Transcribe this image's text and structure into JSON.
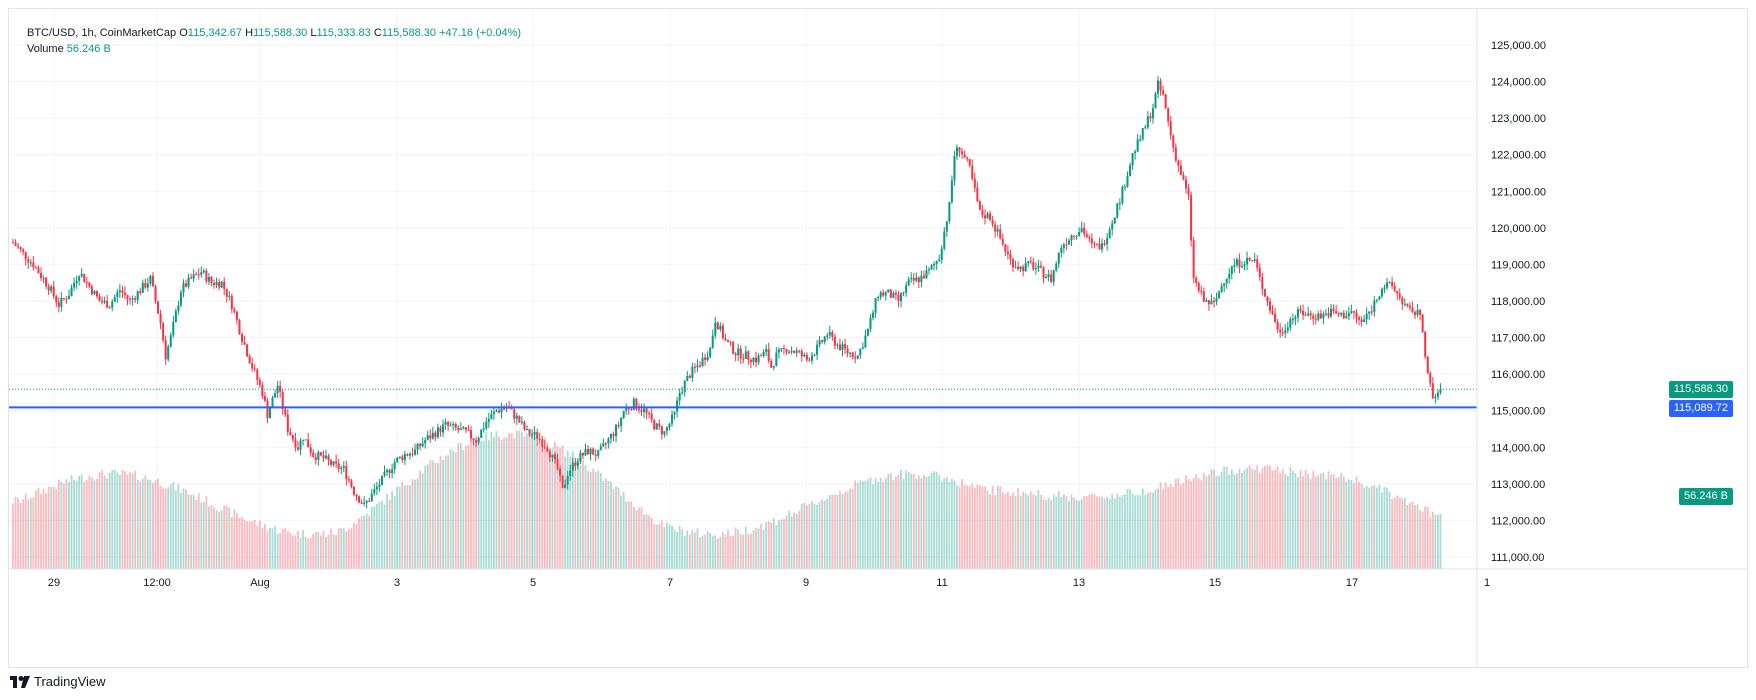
{
  "legend": {
    "symbol": "BTC/USD, 1h, CoinMarketCap",
    "open_label": "O",
    "open": "115,342.67",
    "high_label": "H",
    "high": "115,588.30",
    "low_label": "L",
    "low": "115,333.83",
    "close_label": "C",
    "close": "115,588.30",
    "change": "+47.16 (+0.04%)",
    "volume_label": "Volume",
    "volume": "56.246 B"
  },
  "tags": {
    "last_price": "115,588.30",
    "horizontal_line": "115,089.72",
    "volume": "56.246 B"
  },
  "brand": "TradingView",
  "colors": {
    "up": "#089981",
    "down": "#f23645",
    "line": "#2962ff",
    "grid": "#f0f3fa"
  },
  "chart_data": {
    "type": "candlestick",
    "title": "BTC/USD, 1h, CoinMarketCap",
    "y_axis_ticks": [
      "111,000.00",
      "112,000.00",
      "113,000.00",
      "114,000.00",
      "115,000.00",
      "116,000.00",
      "117,000.00",
      "118,000.00",
      "119,000.00",
      "120,000.00",
      "121,000.00",
      "122,000.00",
      "123,000.00",
      "124,000.00",
      "125,000.00"
    ],
    "x_axis_ticks": [
      "29",
      "12:00",
      "Aug",
      "3",
      "5",
      "7",
      "9",
      "11",
      "13",
      "15",
      "17",
      "1"
    ],
    "ylim": [
      110600,
      125400
    ],
    "last_price": 115588.3,
    "horizontal_line": 115089.72,
    "approx_price_path": [
      [
        0,
        119600
      ],
      [
        8,
        119000
      ],
      [
        14,
        118400
      ],
      [
        18,
        117900
      ],
      [
        22,
        118200
      ],
      [
        26,
        118800
      ],
      [
        30,
        118400
      ],
      [
        34,
        118000
      ],
      [
        38,
        117900
      ],
      [
        42,
        118300
      ],
      [
        46,
        118000
      ],
      [
        50,
        118300
      ],
      [
        54,
        118600
      ],
      [
        56,
        118000
      ],
      [
        58,
        117400
      ],
      [
        60,
        116500
      ],
      [
        62,
        117000
      ],
      [
        66,
        118300
      ],
      [
        70,
        118600
      ],
      [
        74,
        118800
      ],
      [
        78,
        118500
      ],
      [
        82,
        118500
      ],
      [
        86,
        117900
      ],
      [
        90,
        117000
      ],
      [
        94,
        116200
      ],
      [
        98,
        115500
      ],
      [
        100,
        114900
      ],
      [
        104,
        115700
      ],
      [
        108,
        114500
      ],
      [
        112,
        114000
      ],
      [
        114,
        114300
      ],
      [
        118,
        113800
      ],
      [
        122,
        113700
      ],
      [
        126,
        113500
      ],
      [
        130,
        113400
      ],
      [
        134,
        112800
      ],
      [
        138,
        112400
      ],
      [
        142,
        112800
      ],
      [
        146,
        113200
      ],
      [
        150,
        113600
      ],
      [
        154,
        113800
      ],
      [
        158,
        113900
      ],
      [
        162,
        114200
      ],
      [
        166,
        114400
      ],
      [
        170,
        114600
      ],
      [
        174,
        114500
      ],
      [
        178,
        114400
      ],
      [
        182,
        114200
      ],
      [
        186,
        114700
      ],
      [
        190,
        115000
      ],
      [
        194,
        115100
      ],
      [
        198,
        114800
      ],
      [
        202,
        114400
      ],
      [
        206,
        114300
      ],
      [
        210,
        114000
      ],
      [
        214,
        113400
      ],
      [
        216,
        112800
      ],
      [
        218,
        113300
      ],
      [
        222,
        113700
      ],
      [
        226,
        113900
      ],
      [
        230,
        113800
      ],
      [
        234,
        114200
      ],
      [
        238,
        114600
      ],
      [
        240,
        115000
      ],
      [
        244,
        115200
      ],
      [
        248,
        115000
      ],
      [
        252,
        114600
      ],
      [
        256,
        114400
      ],
      [
        260,
        114900
      ],
      [
        262,
        115500
      ],
      [
        266,
        116000
      ],
      [
        270,
        116300
      ],
      [
        274,
        116700
      ],
      [
        276,
        117500
      ],
      [
        280,
        116900
      ],
      [
        284,
        116600
      ],
      [
        288,
        116500
      ],
      [
        292,
        116400
      ],
      [
        296,
        116600
      ],
      [
        298,
        116200
      ],
      [
        300,
        116500
      ],
      [
        304,
        116700
      ],
      [
        308,
        116600
      ],
      [
        312,
        116400
      ],
      [
        316,
        116700
      ],
      [
        320,
        117100
      ],
      [
        324,
        116800
      ],
      [
        328,
        116600
      ],
      [
        332,
        116500
      ],
      [
        336,
        117200
      ],
      [
        340,
        118200
      ],
      [
        344,
        118200
      ],
      [
        348,
        118000
      ],
      [
        352,
        118500
      ],
      [
        356,
        118600
      ],
      [
        360,
        118800
      ],
      [
        364,
        119200
      ],
      [
        366,
        119900
      ],
      [
        368,
        120600
      ],
      [
        370,
        122000
      ],
      [
        372,
        122200
      ],
      [
        376,
        121600
      ],
      [
        380,
        120400
      ],
      [
        384,
        120300
      ],
      [
        388,
        119700
      ],
      [
        392,
        119100
      ],
      [
        396,
        118900
      ],
      [
        400,
        119000
      ],
      [
        404,
        118800
      ],
      [
        408,
        118600
      ],
      [
        412,
        119500
      ],
      [
        416,
        119800
      ],
      [
        420,
        120000
      ],
      [
        424,
        119500
      ],
      [
        428,
        119500
      ],
      [
        432,
        120200
      ],
      [
        436,
        121000
      ],
      [
        440,
        122000
      ],
      [
        444,
        122600
      ],
      [
        448,
        123300
      ],
      [
        450,
        123900
      ],
      [
        452,
        123600
      ],
      [
        456,
        122200
      ],
      [
        458,
        121700
      ],
      [
        462,
        120800
      ],
      [
        464,
        118600
      ],
      [
        468,
        118000
      ],
      [
        472,
        117900
      ],
      [
        476,
        118600
      ],
      [
        480,
        119000
      ],
      [
        484,
        119100
      ],
      [
        488,
        119100
      ],
      [
        490,
        118600
      ],
      [
        494,
        117800
      ],
      [
        498,
        117100
      ],
      [
        502,
        117500
      ],
      [
        506,
        117700
      ],
      [
        510,
        117600
      ],
      [
        514,
        117600
      ],
      [
        518,
        117700
      ],
      [
        522,
        117600
      ],
      [
        526,
        117700
      ],
      [
        530,
        117400
      ],
      [
        534,
        117800
      ],
      [
        538,
        118400
      ],
      [
        542,
        118400
      ],
      [
        546,
        118000
      ],
      [
        550,
        117600
      ],
      [
        552,
        117800
      ],
      [
        554,
        117200
      ],
      [
        556,
        116000
      ],
      [
        558,
        115300
      ],
      [
        561,
        115588
      ]
    ]
  }
}
